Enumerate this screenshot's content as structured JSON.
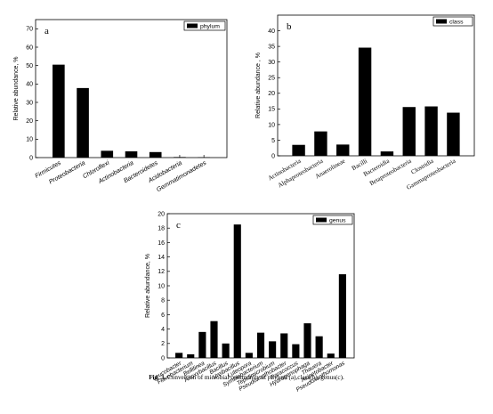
{
  "caption": {
    "fig_label": "Fig. 3.",
    "text": " Convertion of microbial community at phylum (a),class(b), genus(c)."
  },
  "chart_data": [
    {
      "type": "bar",
      "panel_label": "a",
      "legend": "phylum",
      "ylabel": "Relative abundance, %",
      "xlabel": "",
      "ylim": [
        0,
        75
      ],
      "yticks": [
        0,
        10,
        20,
        30,
        40,
        50,
        60,
        70
      ],
      "categories": [
        "Firmicutes",
        "Proteobacteria",
        "Chloroflexi",
        "Actinobacteria",
        "Bacteroidetes",
        "Acidobacteria",
        "Gemmatimonadetes"
      ],
      "values": [
        50.5,
        37.8,
        3.7,
        3.4,
        3.0,
        0.3,
        0.2
      ]
    },
    {
      "type": "bar",
      "panel_label": "b",
      "legend": "class",
      "ylabel": "Relative abundance , %",
      "xlabel": "",
      "ylim": [
        0,
        45
      ],
      "yticks": [
        0,
        5,
        10,
        15,
        20,
        25,
        30,
        35,
        40
      ],
      "categories": [
        "Actinobacteria",
        "Alphaproteobacteria",
        "Anaerolineae",
        "Bacilli",
        "Bacteroidia",
        "Betaproteobacteria",
        "Clostridia",
        "Gammaproteobacteria"
      ],
      "values": [
        3.5,
        7.8,
        3.6,
        34.6,
        1.4,
        15.6,
        15.8,
        13.8
      ]
    },
    {
      "type": "bar",
      "panel_label": "c",
      "legend": "genus",
      "ylabel": "Relative abundance, %",
      "xlabel": "",
      "ylim": [
        0,
        20
      ],
      "yticks": [
        0,
        2,
        4,
        6,
        8,
        10,
        12,
        14,
        16,
        18,
        20
      ],
      "categories": [
        "Leucobacter",
        "Flavobacterium",
        "Bellilinea",
        "Anoxybacillus",
        "Bacillus",
        "Ureibacillus",
        "Luteopora",
        "Symbiobacterium",
        "Tepidimicrobium",
        "Pseudoxanthobacter",
        "Paracoccus",
        "Hydrogenophaga",
        "Thauera",
        "Acinetobacter",
        "Pseudoxanthomonas"
      ],
      "values": [
        0.7,
        0.5,
        3.6,
        5.1,
        2.0,
        18.5,
        0.7,
        3.5,
        2.3,
        3.4,
        1.9,
        4.8,
        3.0,
        0.6,
        11.6
      ]
    }
  ]
}
